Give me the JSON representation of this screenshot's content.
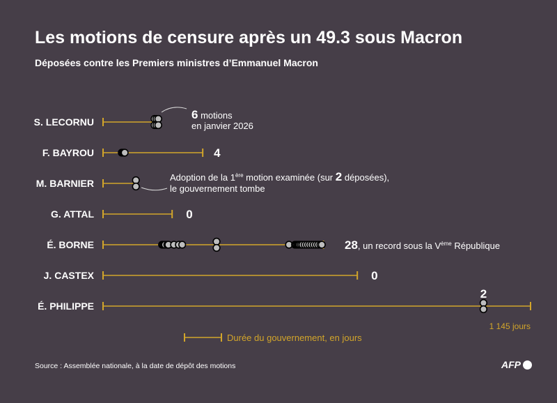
{
  "title": "Les motions de censure après un 49.3 sous Macron",
  "subtitle": "Déposées contre les Premiers ministres d’Emmanuel Macron",
  "source": "Source : Assemblée nationale, à la date de dépôt des motions",
  "logo": "AFP",
  "colors": {
    "background": "#463e48",
    "line": "#d2a52a",
    "dot": "#bdbdbd"
  },
  "chart_data": {
    "type": "dot-timeline",
    "xunit": "jours",
    "xmax": 1145,
    "xmax_label": "1 145 jours",
    "legend_label": "Durée du gouvernement, en jours",
    "rows": [
      {
        "name": "S. LECORNU",
        "duration": 150,
        "end_tick": false,
        "count": "6",
        "note": " motions",
        "note2": "en janvier 2026",
        "motions": [
          138,
          143,
          148,
          138,
          143,
          148
        ]
      },
      {
        "name": "F. BAYROU",
        "duration": 267,
        "end_tick": true,
        "count": "4",
        "note": "",
        "note2": "",
        "motions": [
          50,
          53,
          56,
          58
        ]
      },
      {
        "name": "M. BARNIER",
        "duration": 88,
        "end_tick": false,
        "count": "2",
        "note_pre": "Adoption de la 1",
        "note_sup": "ère",
        "note_mid": " motion examinée (sur ",
        "note_post": " déposées),",
        "note2": "le gouvernement tombe",
        "motions": [
          88,
          88
        ]
      },
      {
        "name": "G. ATTAL",
        "duration": 185,
        "end_tick": true,
        "count": "0",
        "note": "",
        "note2": "",
        "motions": []
      },
      {
        "name": "É. BORNE",
        "duration": 590,
        "end_tick": true,
        "count": "28",
        "note_pre": ", un record sous la V",
        "note_sup": "ème",
        "note_post": " République",
        "motions": [
          158,
          160,
          163,
          166,
          172,
          175,
          190,
          203,
          212,
          304,
          304,
          498,
          514,
          517,
          520,
          523,
          526,
          530,
          534,
          540,
          546,
          552,
          558,
          564,
          570,
          576,
          582,
          586
        ]
      },
      {
        "name": "J. CASTEX",
        "duration": 681,
        "end_tick": true,
        "count": "0",
        "note": "",
        "note2": "",
        "motions": []
      },
      {
        "name": "É. PHILIPPE",
        "duration": 1145,
        "end_tick": true,
        "count": "2",
        "note": "",
        "note2": "",
        "motions": [
          1019,
          1019
        ]
      }
    ]
  }
}
